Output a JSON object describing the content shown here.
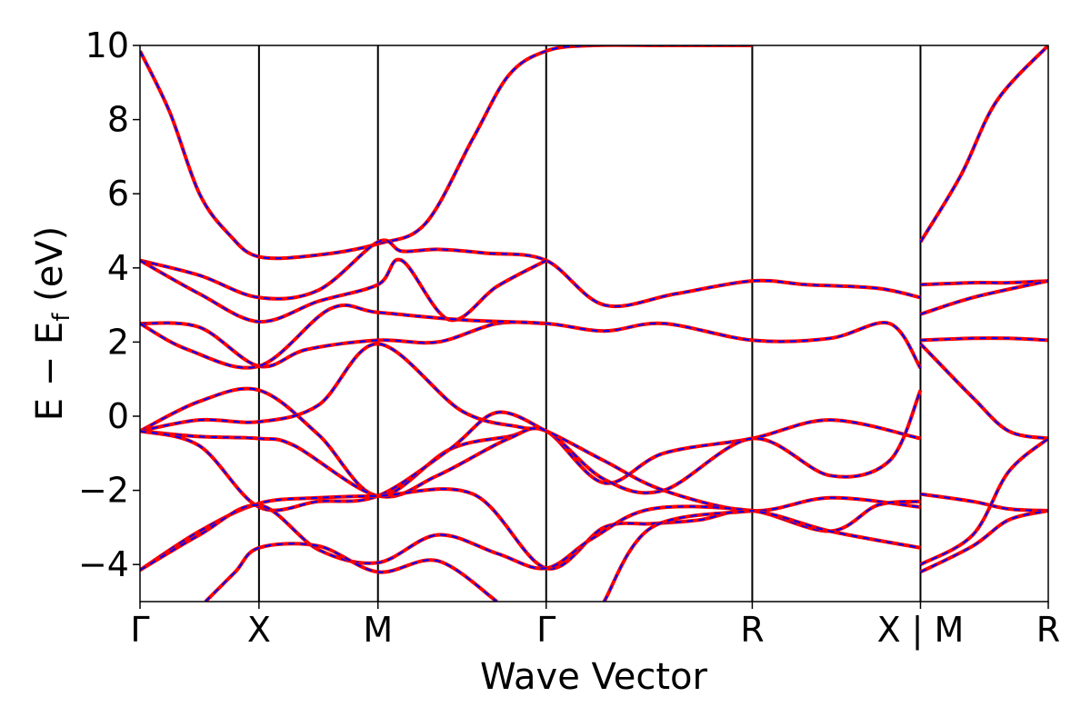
{
  "chart_data": {
    "type": "line",
    "xlabel": "Wave Vector",
    "ylabel": {
      "main": "E − E",
      "subscript": "f",
      "unit": " (eV)"
    },
    "ylim": [
      -5,
      10
    ],
    "yticks": [
      "−4",
      "−2",
      "0",
      "2",
      "4",
      "6",
      "8",
      "10"
    ],
    "ytick_values": [
      -4,
      -2,
      0,
      2,
      4,
      6,
      8,
      10
    ],
    "xlim": [
      0,
      7.634
    ],
    "kpoints": [
      {
        "label": "Γ",
        "x": 0
      },
      {
        "label": "X",
        "x": 1.0
      },
      {
        "label": "M",
        "x": 2.0
      },
      {
        "label": "Γ",
        "x": 3.414
      },
      {
        "label": "R",
        "x": 5.146
      },
      {
        "label": "X | M",
        "x": 6.56
      },
      {
        "label": "R",
        "x": 7.634
      }
    ],
    "grid": false,
    "styles": [
      {
        "color": "#ff0000",
        "dash": "solid"
      },
      {
        "color": "#0000ff",
        "dash": "dashed"
      }
    ],
    "series": [
      {
        "x": [
          0,
          0.25,
          0.5,
          0.75,
          1.0,
          1.5,
          2.0,
          2.4,
          2.8,
          3.1,
          3.414,
          3.8,
          4.4,
          5.146
        ],
        "y": [
          9.85,
          8.2,
          6.0,
          4.9,
          4.3,
          4.35,
          4.65,
          5.2,
          7.5,
          9.2,
          9.85,
          10.0,
          10.0,
          10.0
        ]
      },
      {
        "x": [
          0,
          0.5,
          1.0,
          1.5,
          2.0,
          2.2,
          2.5,
          2.9,
          3.414,
          3.9,
          4.5,
          5.146,
          5.6,
          6.2,
          6.56
        ],
        "y": [
          4.2,
          3.8,
          3.2,
          3.4,
          4.7,
          4.45,
          4.5,
          4.4,
          4.2,
          3.0,
          3.3,
          3.65,
          3.55,
          3.45,
          3.2
        ]
      },
      {
        "x": [
          0,
          0.5,
          1.0,
          1.5,
          2.0,
          2.2,
          2.6,
          3.0,
          3.414
        ],
        "y": [
          4.2,
          3.3,
          2.55,
          3.1,
          3.55,
          4.2,
          2.6,
          3.5,
          4.2
        ]
      },
      {
        "x": [
          0,
          0.5,
          1.0,
          1.4,
          2.0,
          2.5,
          3.0,
          3.414
        ],
        "y": [
          2.5,
          2.4,
          1.35,
          1.8,
          2.05,
          2.0,
          2.5,
          2.5
        ]
      },
      {
        "x": [
          0,
          0.4,
          1.0,
          1.6,
          2.0,
          2.7,
          3.414,
          3.9,
          4.4,
          5.146,
          5.8,
          6.3,
          6.56
        ],
        "y": [
          2.5,
          1.8,
          1.35,
          2.9,
          2.8,
          2.6,
          2.5,
          2.3,
          2.5,
          2.05,
          2.1,
          2.5,
          1.3
        ]
      },
      {
        "x": [
          0,
          0.5,
          1.0,
          1.5,
          2.0,
          2.6,
          3.1,
          3.414,
          3.9,
          4.4,
          5.146,
          5.8,
          6.56
        ],
        "y": [
          -0.4,
          0.4,
          0.7,
          -0.5,
          -2.15,
          -0.9,
          -0.55,
          -0.4,
          -1.8,
          -1.0,
          -0.6,
          -0.1,
          -0.6
        ]
      },
      {
        "x": [
          0,
          0.5,
          1.0,
          1.3,
          2.0,
          2.5,
          3.1,
          3.414,
          3.9,
          4.4,
          5.146,
          5.8,
          6.3,
          6.56
        ],
        "y": [
          -0.4,
          -0.55,
          -0.6,
          -0.8,
          -2.15,
          -1.6,
          -0.6,
          -0.4,
          -1.7,
          -2.0,
          -0.6,
          -1.6,
          -1.2,
          0.7
        ]
      },
      {
        "x": [
          0,
          0.5,
          1.0,
          1.5,
          2.0,
          2.7,
          3.2,
          3.414,
          3.9,
          4.4,
          5.146,
          5.8,
          6.56
        ],
        "y": [
          -0.4,
          -0.1,
          -0.15,
          0.3,
          1.95,
          0.15,
          -0.3,
          -0.4,
          -1.2,
          -2.0,
          -2.55,
          -2.2,
          -2.45
        ]
      },
      {
        "x": [
          0,
          0.5,
          1.0,
          1.5,
          2.0,
          2.6,
          3.0,
          3.414
        ],
        "y": [
          -0.4,
          -0.8,
          -2.45,
          -2.3,
          -2.15,
          -0.9,
          0.1,
          -0.4
        ]
      },
      {
        "x": [
          0,
          0.5,
          1.0,
          1.5,
          2.0,
          2.8,
          3.414,
          3.9,
          4.3,
          4.7,
          5.146,
          5.8,
          6.2,
          6.56
        ],
        "y": [
          -4.15,
          -3.1,
          -2.35,
          -2.2,
          -2.15,
          -2.1,
          -4.1,
          -3.0,
          -2.9,
          -2.8,
          -2.55,
          -3.1,
          -2.4,
          -2.3
        ]
      },
      {
        "x": [
          0,
          0.5,
          1.0,
          1.5,
          2.0,
          2.5,
          3.0,
          3.414,
          3.8,
          4.3,
          5.146,
          5.8,
          6.56
        ],
        "y": [
          -4.15,
          -3.2,
          -2.4,
          -3.6,
          -3.95,
          -3.2,
          -3.7,
          -4.1,
          -3.3,
          -2.5,
          -2.55,
          -3.1,
          -3.55
        ]
      },
      {
        "x": [
          0.55,
          0.8,
          1.0,
          1.5,
          2.0,
          2.5,
          3.0
        ],
        "y": [
          -5.0,
          -4.2,
          -3.55,
          -3.5,
          -4.2,
          -3.9,
          -5.0
        ]
      },
      {
        "x": [
          3.9,
          4.3,
          5.146
        ],
        "y": [
          -5.0,
          -3.0,
          -2.55
        ]
      },
      {
        "x": [
          6.56,
          6.9,
          7.2,
          7.634
        ],
        "y": [
          4.7,
          6.5,
          8.5,
          10.0
        ]
      },
      {
        "x": [
          6.56,
          7.0,
          7.3,
          7.634
        ],
        "y": [
          3.55,
          3.6,
          3.6,
          3.65
        ]
      },
      {
        "x": [
          6.56,
          7.0,
          7.634
        ],
        "y": [
          2.75,
          3.2,
          3.65
        ]
      },
      {
        "x": [
          6.56,
          7.0,
          7.3,
          7.634
        ],
        "y": [
          2.05,
          2.1,
          2.1,
          2.05
        ]
      },
      {
        "x": [
          6.56,
          7.0,
          7.3,
          7.634
        ],
        "y": [
          1.95,
          0.5,
          -0.4,
          -0.6
        ]
      },
      {
        "x": [
          6.56,
          7.0,
          7.3,
          7.634
        ],
        "y": [
          -2.1,
          -2.3,
          -2.5,
          -2.55
        ]
      },
      {
        "x": [
          6.56,
          7.0,
          7.3,
          7.634
        ],
        "y": [
          -4.0,
          -3.2,
          -1.5,
          -0.6
        ]
      },
      {
        "x": [
          6.56,
          7.0,
          7.3,
          7.634
        ],
        "y": [
          -4.2,
          -3.5,
          -2.8,
          -2.55
        ]
      }
    ]
  }
}
